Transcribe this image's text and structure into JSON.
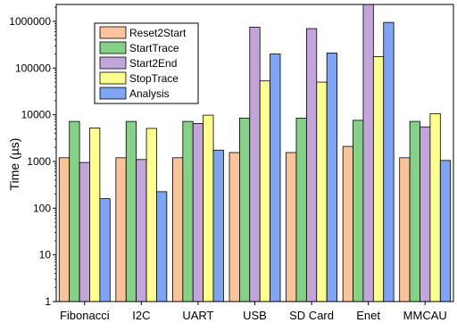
{
  "chart_data": {
    "type": "bar",
    "ylabel": "Time (µs)",
    "xlabel": "",
    "yscale": "log",
    "ylim": [
      1,
      2300000
    ],
    "yticks": [
      1,
      10,
      100,
      1000,
      10000,
      100000,
      1000000
    ],
    "ytick_labels": [
      "1",
      "10",
      "100",
      "1000",
      "10000",
      "100000",
      "1000000"
    ],
    "grid": false,
    "legend_position": "top-left",
    "categories": [
      "Fibonacci",
      "I2C",
      "UART",
      "USB",
      "SD Card",
      "Enet",
      "MMCAU"
    ],
    "series": [
      {
        "name": "Reset2Start",
        "color": "#f9c39c",
        "values": [
          1200,
          1200,
          1200,
          1550,
          1550,
          2100,
          1200
        ]
      },
      {
        "name": "StartTrace",
        "color": "#87d087",
        "values": [
          7200,
          7200,
          7200,
          8500,
          8500,
          7600,
          7200
        ]
      },
      {
        "name": "Start2End",
        "color": "#c3a6d9",
        "values": [
          950,
          1100,
          6500,
          750000,
          700000,
          2300000,
          5500
        ]
      },
      {
        "name": "StopTrace",
        "color": "#ffff8f",
        "values": [
          5200,
          5100,
          9800,
          53000,
          50000,
          175000,
          10500
        ]
      },
      {
        "name": "Analysis",
        "color": "#7fa5f2",
        "values": [
          160,
          225,
          1750,
          200000,
          210000,
          950000,
          1050
        ]
      }
    ]
  }
}
